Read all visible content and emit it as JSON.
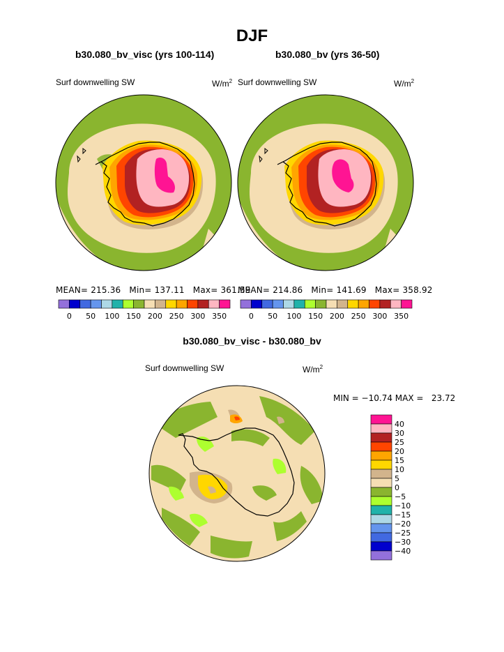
{
  "season": "DJF",
  "panels": [
    {
      "case_title": "b30.080_bv_visc (yrs 100-114)",
      "variable": "Surf downwelling SW",
      "units_base": "W/m",
      "units_exp": "2",
      "stats": {
        "mean": "MEAN= 215.36",
        "min": "Min= 137.11",
        "max": "Max= 361.59"
      }
    },
    {
      "case_title": "b30.080_bv (yrs 36-50)",
      "variable": "Surf downwelling SW",
      "units_base": "W/m",
      "units_exp": "2",
      "stats": {
        "mean": "MEAN= 214.86",
        "min": "Min= 141.69",
        "max": "Max= 358.92"
      }
    }
  ],
  "colorbar_top": {
    "colors": [
      "#9370db",
      "#0000cd",
      "#4169e1",
      "#6495ed",
      "#add8e6",
      "#20b2aa",
      "#adff2f",
      "#8ab52f",
      "#f5deb3",
      "#d2b48c",
      "#ffd700",
      "#ffa500",
      "#ff4500",
      "#b22222",
      "#ffb6c1",
      "#ff1493"
    ],
    "labels": [
      "0",
      "50",
      "100",
      "150",
      "200",
      "250",
      "300",
      "350"
    ]
  },
  "difference": {
    "title": "b30.080_bv_visc - b30.080_bv",
    "variable": "Surf downwelling SW",
    "units_base": "W/m",
    "units_exp": "2",
    "minmax": "MIN = −10.74 MAX =   23.72",
    "colorbar": {
      "colors": [
        "#ff1493",
        "#ffb6c1",
        "#b22222",
        "#ff4500",
        "#ffa500",
        "#ffd700",
        "#d2b48c",
        "#f5deb3",
        "#8ab52f",
        "#adff2f",
        "#20b2aa",
        "#add8e6",
        "#6495ed",
        "#4169e1",
        "#0000cd",
        "#9370db"
      ],
      "labels": [
        "40",
        "30",
        "25",
        "20",
        "15",
        "10",
        "5",
        "0",
        "−5",
        "−10",
        "−15",
        "−20",
        "−25",
        "−30",
        "−40"
      ]
    }
  },
  "map_colors": {
    "ocean_green": "#8ab52f",
    "wheat": "#f5deb3",
    "tan": "#d2b48c",
    "light_green": "#adff2f",
    "gold": "#ffd700",
    "orange": "#ffa500",
    "red": "#ff4500",
    "dark_red": "#b22222",
    "pink": "#ffb6c1",
    "magenta": "#ff1493"
  }
}
